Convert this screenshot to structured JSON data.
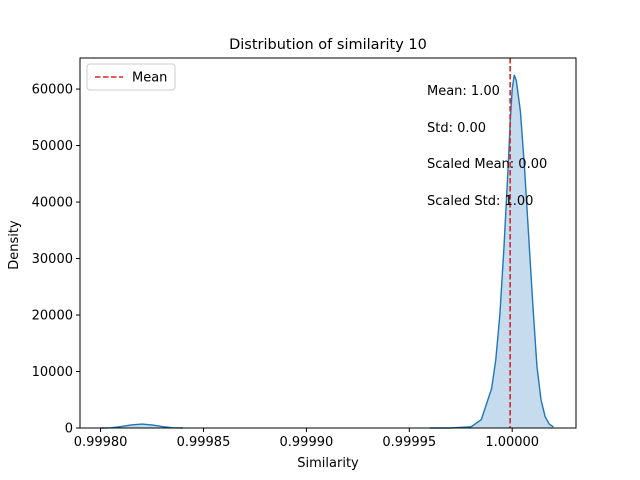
{
  "chart_data": {
    "type": "area",
    "title": "Distribution of similarity 10",
    "xlabel": "Similarity",
    "ylabel": "Density",
    "xlim": [
      0.99979,
      1.000031
    ],
    "ylim": [
      0,
      65500
    ],
    "x_ticks": [
      0.9998,
      0.99985,
      0.9999,
      0.99995,
      1.0
    ],
    "x_tick_labels": [
      "0.99980",
      "0.99985",
      "0.99990",
      "0.99995",
      "1.00000"
    ],
    "y_ticks": [
      0,
      10000,
      20000,
      30000,
      40000,
      50000,
      60000
    ],
    "y_tick_labels": [
      "0",
      "10000",
      "20000",
      "30000",
      "40000",
      "50000",
      "60000"
    ],
    "grid": false,
    "legend_placement": "upper-left",
    "series": [
      {
        "kind": "kde",
        "line_color": "#1f77b4",
        "fill_color": "#c6dbee",
        "x": [
          0.9998,
          0.999805,
          0.99981,
          0.999815,
          0.99982,
          0.999825,
          0.99983,
          0.999835,
          0.99984,
          0.99996,
          0.99997,
          0.99998,
          0.999985,
          0.99999,
          0.999992,
          0.999994,
          0.999996,
          0.999998,
          0.999999,
          1.0,
          1.000001,
          1.000002,
          1.000004,
          1.000006,
          1.000008,
          1.00001,
          1.000012,
          1.000014,
          1.000016,
          1.000018,
          1.00002
        ],
        "y": [
          0,
          40,
          250,
          550,
          700,
          550,
          250,
          40,
          0,
          0,
          0,
          200,
          1500,
          7000,
          12000,
          20000,
          32000,
          46000,
          54000,
          60000,
          62500,
          61500,
          56000,
          46000,
          34000,
          22000,
          11000,
          5000,
          2000,
          700,
          200
        ]
      },
      {
        "name": "Mean",
        "kind": "vline",
        "x": 0.999999,
        "color": "#d62728",
        "style": "dashed"
      }
    ],
    "annotations": [
      "Mean: 1.00",
      "Std: 0.00",
      "Scaled Mean: 0.00",
      "Scaled Std: 1.00"
    ]
  }
}
